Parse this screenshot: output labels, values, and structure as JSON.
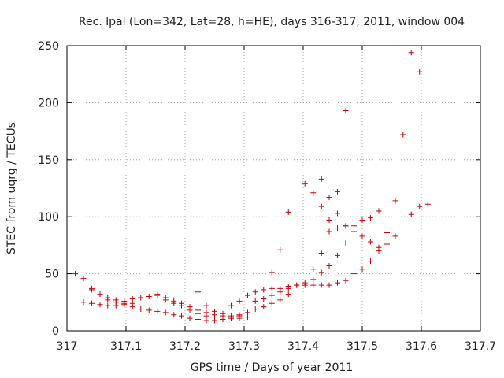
{
  "chart_data": {
    "type": "scatter",
    "title": "Rec. lpal (Lon=342, Lat=28, h=HE), days 316-317, 2011, window 004",
    "xlabel": "GPS time / Days of year 2011",
    "ylabel": "STEC from uqrg / TECUs",
    "xlim": [
      317,
      317.7
    ],
    "ylim": [
      0,
      250
    ],
    "x_ticks": [
      "317",
      "317.1",
      "317.2",
      "317.3",
      "317.4",
      "317.5",
      "317.6",
      "317.7"
    ],
    "y_ticks": [
      "0",
      "50",
      "100",
      "150",
      "200",
      "250"
    ],
    "grid": true,
    "marker": "+",
    "color": "#cc0000",
    "points": [
      [
        317.014,
        50
      ],
      [
        317.028,
        46
      ],
      [
        317.042,
        37
      ],
      [
        317.056,
        32
      ],
      [
        317.069,
        29
      ],
      [
        317.083,
        27
      ],
      [
        317.097,
        26
      ],
      [
        317.111,
        28
      ],
      [
        317.125,
        29
      ],
      [
        317.139,
        30
      ],
      [
        317.153,
        32
      ],
      [
        317.167,
        29
      ],
      [
        317.181,
        26
      ],
      [
        317.194,
        24
      ],
      [
        317.208,
        21
      ],
      [
        317.222,
        18
      ],
      [
        317.236,
        16
      ],
      [
        317.25,
        14
      ],
      [
        317.264,
        13
      ],
      [
        317.278,
        13
      ],
      [
        317.292,
        14
      ],
      [
        317.306,
        16
      ],
      [
        317.319,
        19
      ],
      [
        317.333,
        21
      ],
      [
        317.347,
        24
      ],
      [
        317.361,
        27
      ],
      [
        317.375,
        32
      ],
      [
        317.028,
        25
      ],
      [
        317.042,
        24
      ],
      [
        317.056,
        23
      ],
      [
        317.069,
        22
      ],
      [
        317.083,
        22
      ],
      [
        317.097,
        23
      ],
      [
        317.111,
        21
      ],
      [
        317.125,
        19
      ],
      [
        317.139,
        18
      ],
      [
        317.153,
        17
      ],
      [
        317.167,
        16
      ],
      [
        317.181,
        14
      ],
      [
        317.194,
        13
      ],
      [
        317.208,
        11
      ],
      [
        317.222,
        10
      ],
      [
        317.236,
        9
      ],
      [
        317.25,
        9
      ],
      [
        317.264,
        10
      ],
      [
        317.278,
        11
      ],
      [
        317.292,
        11
      ],
      [
        317.306,
        12
      ],
      [
        317.042,
        36
      ],
      [
        317.069,
        27
      ],
      [
        317.083,
        25
      ],
      [
        317.097,
        24
      ],
      [
        317.111,
        24
      ],
      [
        317.153,
        31
      ],
      [
        317.167,
        27
      ],
      [
        317.181,
        24
      ],
      [
        317.194,
        22
      ],
      [
        317.208,
        18
      ],
      [
        317.222,
        15
      ],
      [
        317.236,
        13
      ],
      [
        317.25,
        12
      ],
      [
        317.264,
        12
      ],
      [
        317.278,
        12
      ],
      [
        317.292,
        13
      ],
      [
        317.222,
        34
      ],
      [
        317.236,
        22
      ],
      [
        317.25,
        17
      ],
      [
        317.264,
        15
      ],
      [
        317.278,
        22
      ],
      [
        317.292,
        26
      ],
      [
        317.306,
        31
      ],
      [
        317.319,
        34
      ],
      [
        317.333,
        36
      ],
      [
        317.347,
        37
      ],
      [
        317.361,
        37
      ],
      [
        317.375,
        39
      ],
      [
        317.389,
        40
      ],
      [
        317.403,
        42
      ],
      [
        317.417,
        45
      ],
      [
        317.319,
        26
      ],
      [
        317.333,
        28
      ],
      [
        317.347,
        31
      ],
      [
        317.361,
        34
      ],
      [
        317.375,
        37
      ],
      [
        317.389,
        40
      ],
      [
        317.403,
        40
      ],
      [
        317.417,
        40
      ],
      [
        317.431,
        40
      ],
      [
        317.444,
        40
      ],
      [
        317.458,
        42
      ],
      [
        317.472,
        44
      ],
      [
        317.486,
        50
      ],
      [
        317.5,
        54
      ],
      [
        317.514,
        61
      ],
      [
        317.528,
        70
      ],
      [
        317.542,
        76
      ],
      [
        317.556,
        83
      ],
      [
        317.347,
        51
      ],
      [
        317.361,
        71
      ],
      [
        317.375,
        104
      ],
      [
        317.403,
        129
      ],
      [
        317.417,
        121
      ],
      [
        317.431,
        133
      ],
      [
        317.444,
        117
      ],
      [
        317.458,
        122
      ],
      [
        317.431,
        109
      ],
      [
        317.444,
        97
      ],
      [
        317.458,
        103
      ],
      [
        317.472,
        92
      ],
      [
        317.486,
        92
      ],
      [
        317.5,
        97
      ],
      [
        317.514,
        99
      ],
      [
        317.528,
        105
      ],
      [
        317.417,
        54
      ],
      [
        317.431,
        68
      ],
      [
        317.444,
        87
      ],
      [
        317.458,
        90
      ],
      [
        317.472,
        92
      ],
      [
        317.486,
        87
      ],
      [
        317.5,
        83
      ],
      [
        317.514,
        78
      ],
      [
        317.528,
        73
      ],
      [
        317.542,
        86
      ],
      [
        317.556,
        114
      ],
      [
        317.431,
        51
      ],
      [
        317.444,
        57
      ],
      [
        317.458,
        66
      ],
      [
        317.472,
        77
      ],
      [
        317.472,
        193
      ],
      [
        317.569,
        172
      ],
      [
        317.583,
        244
      ],
      [
        317.597,
        227
      ],
      [
        317.583,
        102
      ],
      [
        317.597,
        109
      ],
      [
        317.611,
        111
      ]
    ]
  }
}
